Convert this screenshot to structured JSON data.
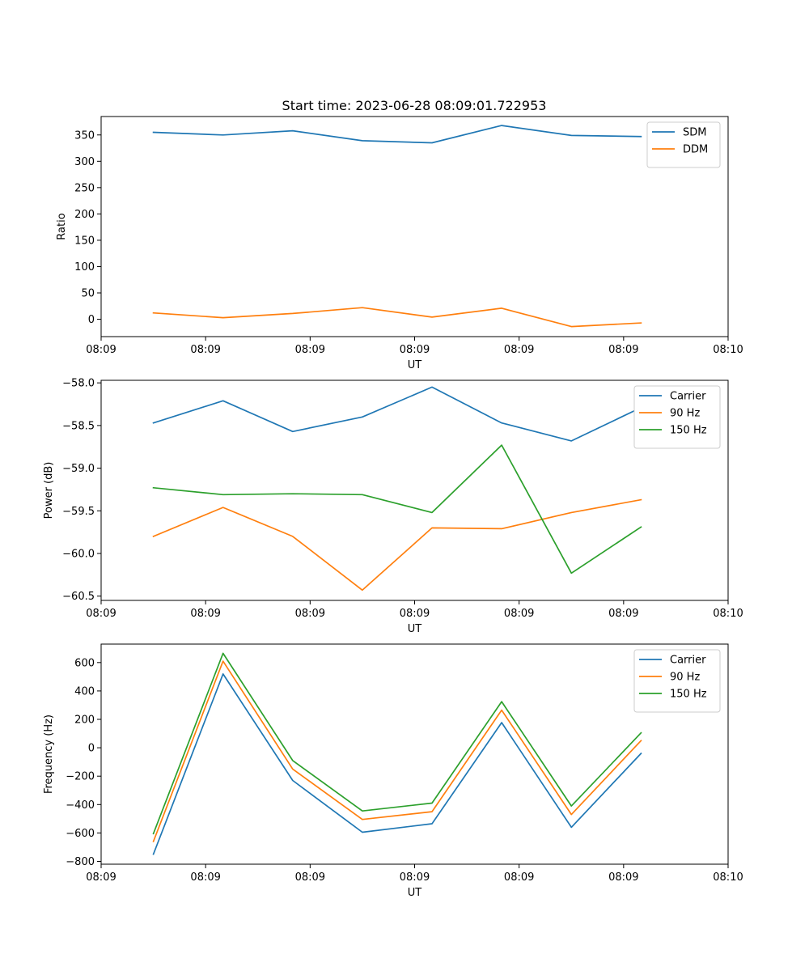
{
  "figure_title": "Start time: 2023-06-28 08:09:01.722953",
  "colors": {
    "blue": "#1f77b4",
    "orange": "#ff7f0e",
    "green": "#2ca02c"
  },
  "chart_data": [
    {
      "type": "line",
      "title": "Start time: 2023-06-28 08:09:01.722953",
      "xlabel": "UT",
      "ylabel": "Ratio",
      "x": [
        1,
        2,
        3,
        4,
        5,
        6,
        7,
        8
      ],
      "xlim": [
        0.25,
        9.25
      ],
      "xticks": [
        0.25,
        1.75,
        3.25,
        4.75,
        6.25,
        7.75,
        9.25
      ],
      "xtick_labels": [
        "08:09",
        "08:09",
        "08:09",
        "08:09",
        "08:09",
        "08:09",
        "08:10"
      ],
      "ylim": [
        -33,
        385
      ],
      "yticks": [
        0,
        50,
        100,
        150,
        200,
        250,
        300,
        350
      ],
      "ytick_labels": [
        "0",
        "50",
        "100",
        "150",
        "200",
        "250",
        "300",
        "350"
      ],
      "legend_position": "top-right",
      "series": [
        {
          "name": "SDM",
          "color": "#1f77b4",
          "values": [
            355,
            350,
            358,
            339,
            335,
            368,
            349,
            347
          ]
        },
        {
          "name": "DDM",
          "color": "#ff7f0e",
          "values": [
            12,
            3,
            11,
            22,
            4,
            21,
            -14,
            -7
          ]
        }
      ]
    },
    {
      "type": "line",
      "xlabel": "UT",
      "ylabel": "Power (dB)",
      "x": [
        1,
        2,
        3,
        4,
        5,
        6,
        7,
        8
      ],
      "xlim": [
        0.25,
        9.25
      ],
      "xticks": [
        0.25,
        1.75,
        3.25,
        4.75,
        6.25,
        7.75,
        9.25
      ],
      "xtick_labels": [
        "08:09",
        "08:09",
        "08:09",
        "08:09",
        "08:09",
        "08:09",
        "08:10"
      ],
      "ylim": [
        -60.55,
        -57.97
      ],
      "yticks": [
        -60.5,
        -60.0,
        -59.5,
        -59.0,
        -58.5,
        -58.0
      ],
      "ytick_labels": [
        "−60.5",
        "−60.0",
        "−59.5",
        "−59.0",
        "−58.5",
        "−58.0"
      ],
      "legend_position": "top-right",
      "series": [
        {
          "name": "Carrier",
          "color": "#1f77b4",
          "values": [
            -58.47,
            -58.21,
            -58.57,
            -58.4,
            -58.05,
            -58.47,
            -58.68,
            -58.29
          ]
        },
        {
          "name": "90 Hz",
          "color": "#ff7f0e",
          "values": [
            -59.8,
            -59.46,
            -59.8,
            -60.43,
            -59.7,
            -59.71,
            -59.52,
            -59.37
          ]
        },
        {
          "name": "150 Hz",
          "color": "#2ca02c",
          "values": [
            -59.23,
            -59.31,
            -59.3,
            -59.31,
            -59.52,
            -58.73,
            -60.23,
            -59.69
          ]
        }
      ]
    },
    {
      "type": "line",
      "xlabel": "UT",
      "ylabel": "Frequency (Hz)",
      "x": [
        1,
        2,
        3,
        4,
        5,
        6,
        7,
        8
      ],
      "xlim": [
        0.25,
        9.25
      ],
      "xticks": [
        0.25,
        1.75,
        3.25,
        4.75,
        6.25,
        7.75,
        9.25
      ],
      "xtick_labels": [
        "08:09",
        "08:09",
        "08:09",
        "08:09",
        "08:09",
        "08:09",
        "08:10"
      ],
      "ylim": [
        -820,
        730
      ],
      "yticks": [
        -800,
        -600,
        -400,
        -200,
        0,
        200,
        400,
        600
      ],
      "ytick_labels": [
        "−800",
        "−600",
        "−400",
        "−200",
        "0",
        "200",
        "400",
        "600"
      ],
      "legend_position": "top-right",
      "series": [
        {
          "name": "Carrier",
          "color": "#1f77b4",
          "values": [
            -750,
            520,
            -230,
            -595,
            -535,
            177,
            -560,
            -40
          ]
        },
        {
          "name": "90 Hz",
          "color": "#ff7f0e",
          "values": [
            -660,
            610,
            -150,
            -505,
            -450,
            265,
            -470,
            50
          ]
        },
        {
          "name": "150 Hz",
          "color": "#2ca02c",
          "values": [
            -605,
            665,
            -90,
            -445,
            -390,
            325,
            -410,
            105
          ]
        }
      ]
    }
  ]
}
